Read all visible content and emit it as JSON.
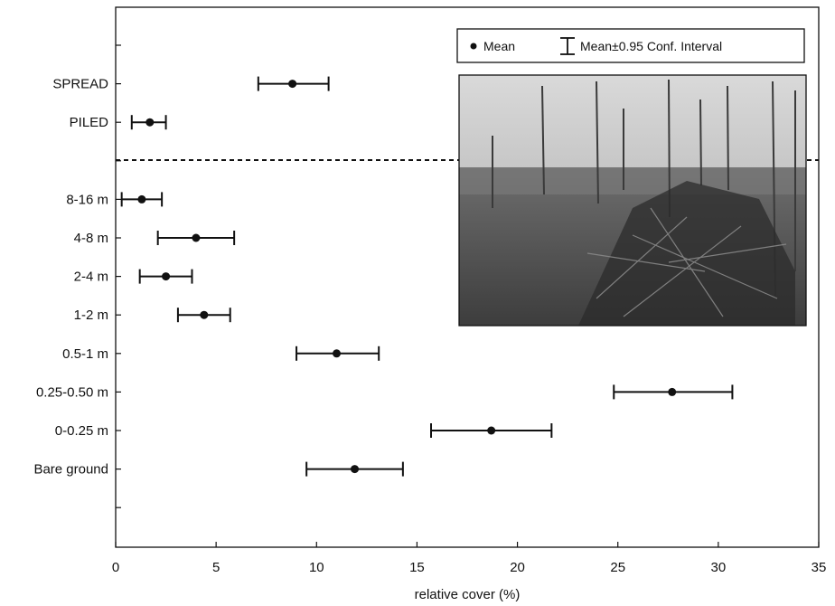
{
  "chart_data": {
    "type": "scatter",
    "subtype": "dot-with-error-bars",
    "xlabel": "relative cover (%)",
    "ylabel": "",
    "xlim": [
      0,
      35
    ],
    "xticks": [
      0,
      5,
      10,
      15,
      20,
      25,
      30,
      35
    ],
    "grid": false,
    "legend": {
      "placement": "top-right",
      "entries": [
        {
          "symbol": "dot",
          "label": "Mean"
        },
        {
          "symbol": "error-bar",
          "label": "Mean±0.95 Conf. Interval"
        }
      ]
    },
    "separator": "dashed line between PILED and 8-16 m",
    "categories": [
      "SPREAD",
      "PILED",
      "8-16 m",
      "4-8 m",
      "2-4 m",
      "1-2 m",
      "0.5-1 m",
      "0.25-0.50 m",
      "0-0.25 m",
      "Bare ground"
    ],
    "series": [
      {
        "mean": [
          8.8,
          1.7,
          1.3,
          4.0,
          2.5,
          4.4,
          11.0,
          27.7,
          18.7,
          11.9
        ],
        "ci_low": [
          7.1,
          0.8,
          0.3,
          2.1,
          1.2,
          3.1,
          9.0,
          24.8,
          15.7,
          9.5
        ],
        "ci_high": [
          10.6,
          2.5,
          2.3,
          5.9,
          3.8,
          5.7,
          13.1,
          30.7,
          21.7,
          14.3
        ]
      }
    ],
    "inset": "photograph of piled and spread logging residue in a cleared forest"
  }
}
